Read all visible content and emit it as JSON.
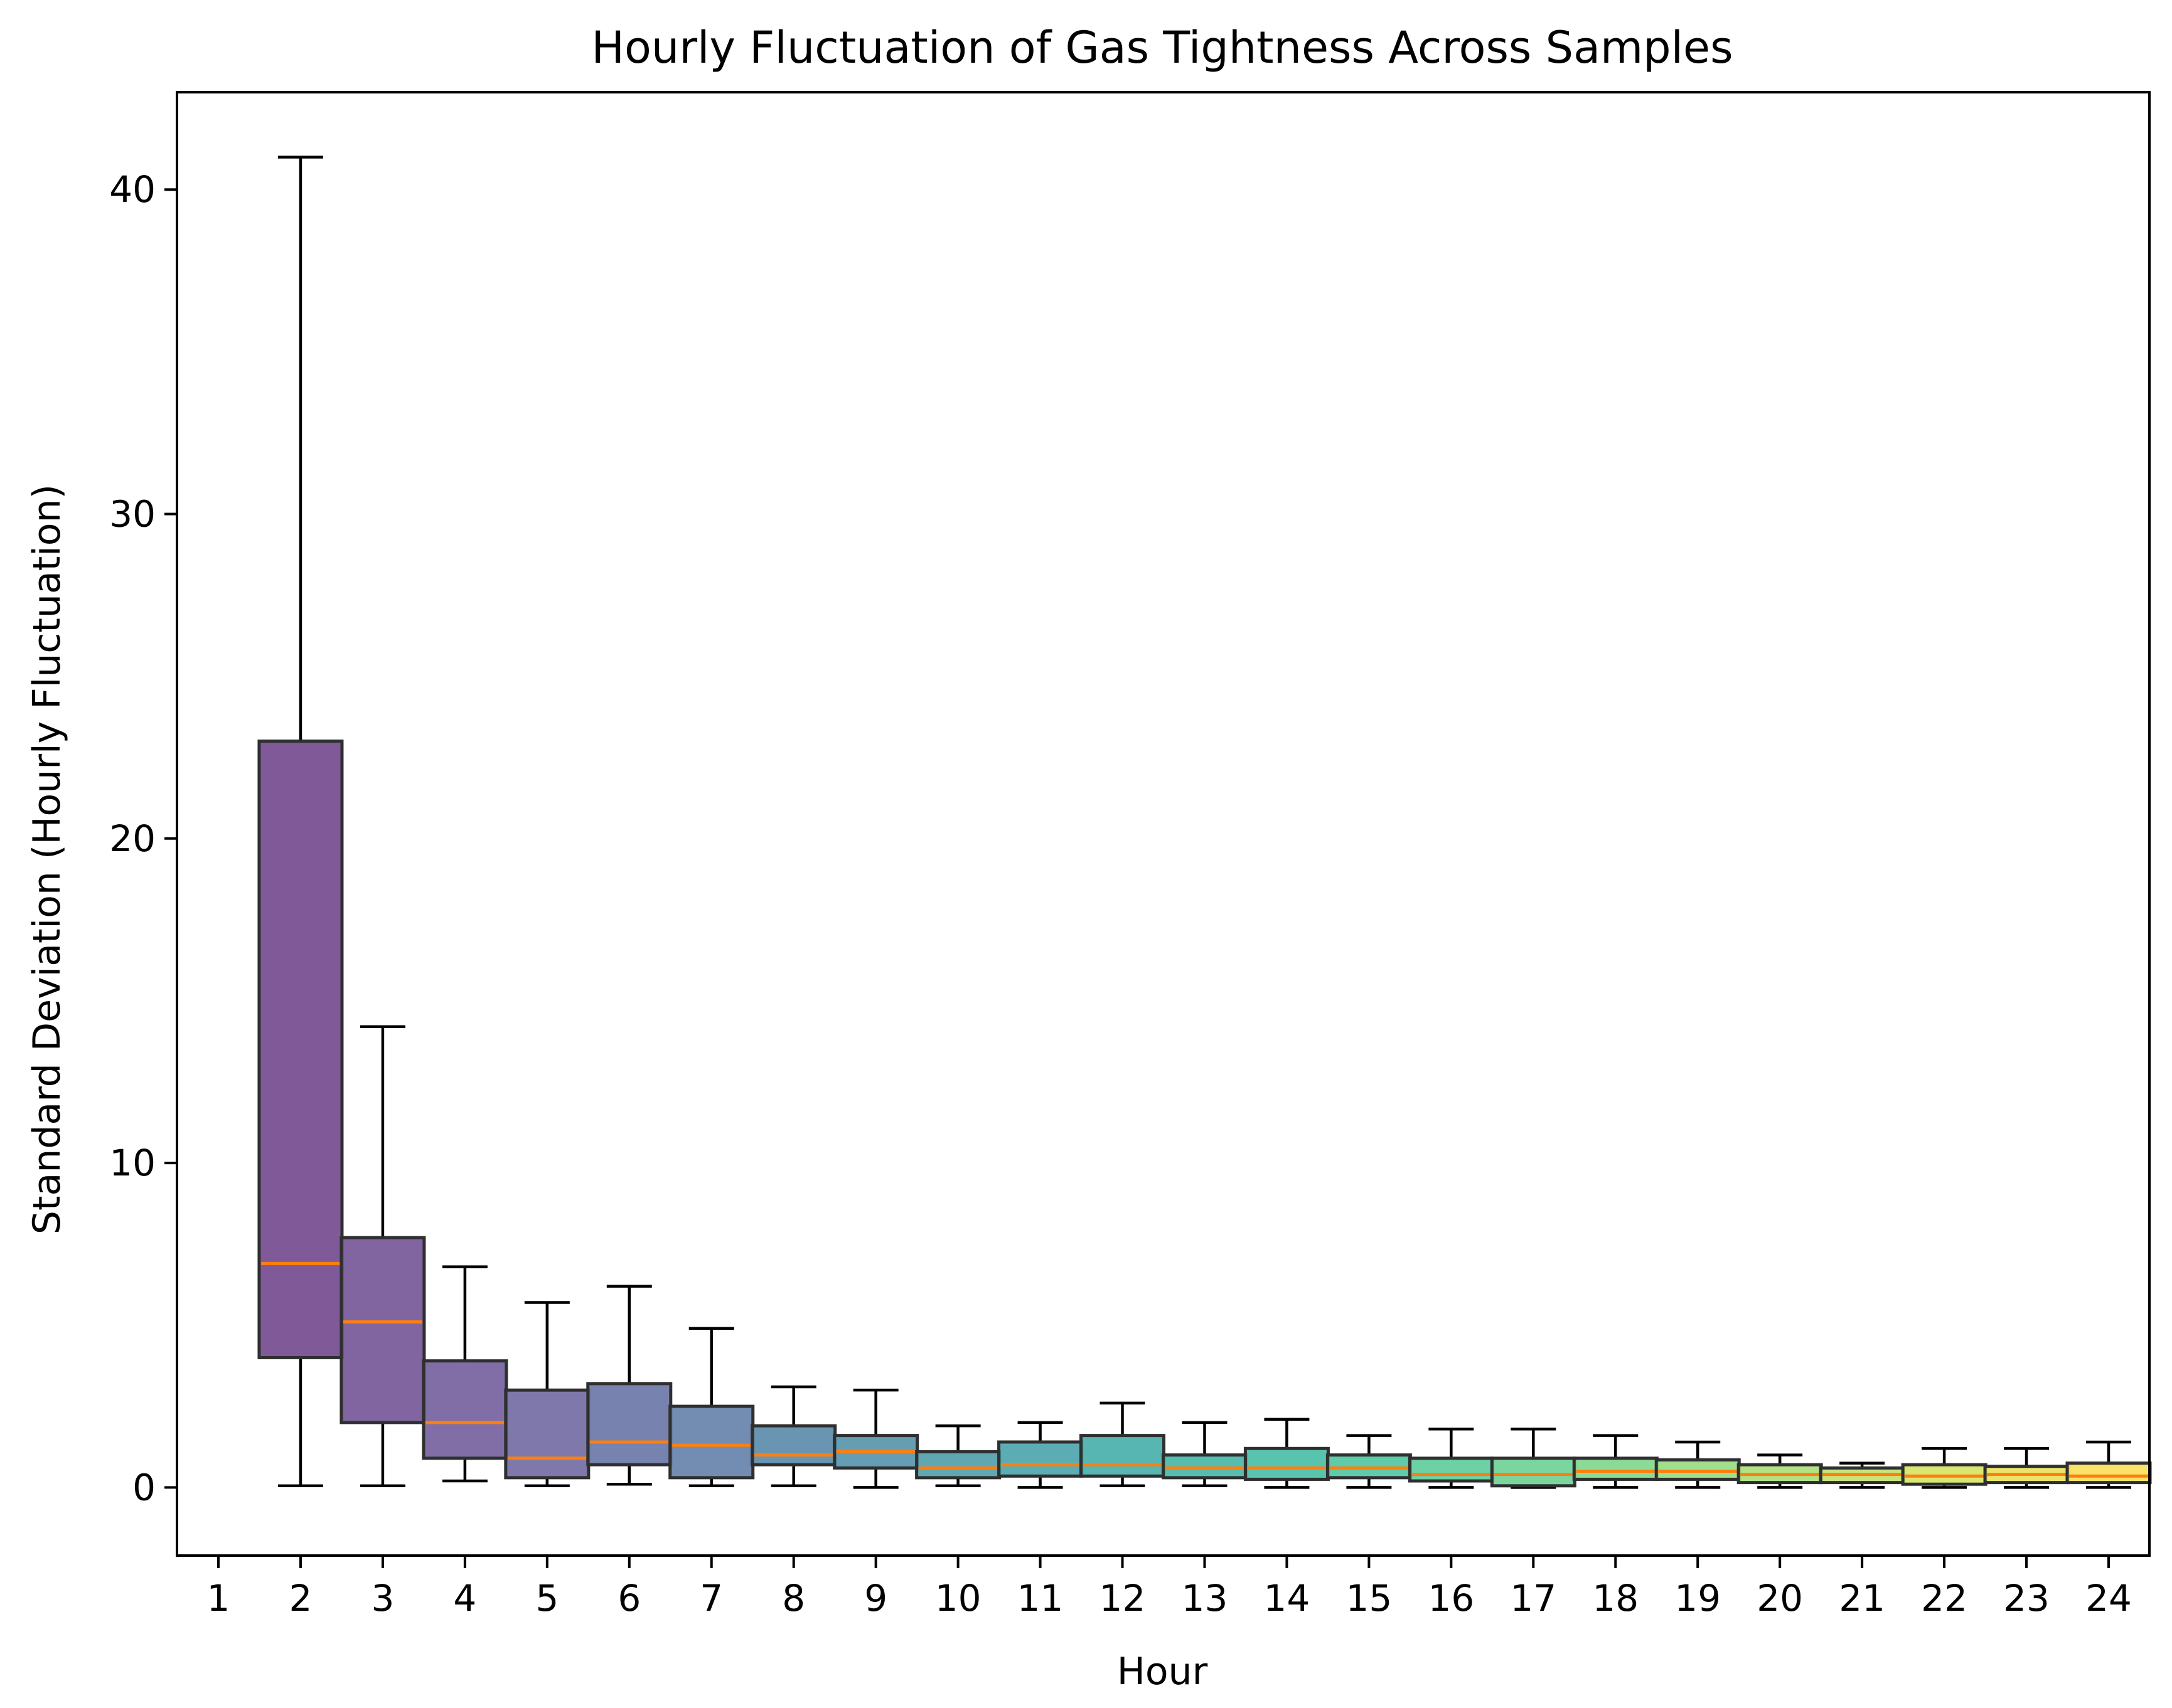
{
  "chart_data": {
    "type": "box",
    "title": "Hourly Fluctuation of Gas Tightness Across Samples",
    "xlabel": "Hour",
    "ylabel": "Standard Deviation (Hourly Fluctuation)",
    "ylim": [
      -2.1,
      43.0
    ],
    "yticks": [
      0,
      10,
      20,
      30,
      40
    ],
    "categories": [
      "1",
      "2",
      "3",
      "4",
      "5",
      "6",
      "7",
      "8",
      "9",
      "10",
      "11",
      "12",
      "13",
      "14",
      "15",
      "16",
      "17",
      "18",
      "19",
      "20",
      "21",
      "22",
      "23",
      "24"
    ],
    "median_color": "#ff7f0e",
    "boxes": [
      {
        "hour": "1",
        "min": null,
        "q1": null,
        "median": null,
        "q3": null,
        "max": null,
        "color": null
      },
      {
        "hour": "2",
        "min": 0.05,
        "q1": 4.0,
        "median": 6.9,
        "q3": 23.0,
        "max": 41.0,
        "color": "#6a3d86"
      },
      {
        "hour": "3",
        "min": 0.05,
        "q1": 2.0,
        "median": 5.1,
        "q3": 7.7,
        "max": 14.2,
        "color": "#6a4a90"
      },
      {
        "hour": "4",
        "min": 0.2,
        "q1": 0.9,
        "median": 2.0,
        "q3": 3.9,
        "max": 6.8,
        "color": "#6b5596"
      },
      {
        "hour": "5",
        "min": 0.05,
        "q1": 0.3,
        "median": 0.9,
        "q3": 3.0,
        "max": 5.7,
        "color": "#67609c"
      },
      {
        "hour": "6",
        "min": 0.1,
        "q1": 0.7,
        "median": 1.4,
        "q3": 3.2,
        "max": 6.2,
        "color": "#5f6ca0"
      },
      {
        "hour": "7",
        "min": 0.05,
        "q1": 0.3,
        "median": 1.3,
        "q3": 2.5,
        "max": 4.9,
        "color": "#5a78a3"
      },
      {
        "hour": "8",
        "min": 0.05,
        "q1": 0.7,
        "median": 1.0,
        "q3": 1.9,
        "max": 3.1,
        "color": "#4f82a4"
      },
      {
        "hour": "9",
        "min": 0.0,
        "q1": 0.6,
        "median": 1.1,
        "q3": 1.6,
        "max": 3.0,
        "color": "#4a8ca6"
      },
      {
        "hour": "10",
        "min": 0.05,
        "q1": 0.3,
        "median": 0.6,
        "q3": 1.1,
        "max": 1.9,
        "color": "#4596a6"
      },
      {
        "hour": "11",
        "min": 0.0,
        "q1": 0.35,
        "median": 0.7,
        "q3": 1.4,
        "max": 2.0,
        "color": "#3f9fa6"
      },
      {
        "hour": "12",
        "min": 0.05,
        "q1": 0.35,
        "median": 0.7,
        "q3": 1.6,
        "max": 2.6,
        "color": "#3aa8a5"
      },
      {
        "hour": "13",
        "min": 0.05,
        "q1": 0.3,
        "median": 0.6,
        "q3": 1.0,
        "max": 2.0,
        "color": "#39b1a3"
      },
      {
        "hour": "14",
        "min": 0.0,
        "q1": 0.25,
        "median": 0.6,
        "q3": 1.2,
        "max": 2.1,
        "color": "#3cbaa0"
      },
      {
        "hour": "15",
        "min": 0.0,
        "q1": 0.3,
        "median": 0.6,
        "q3": 1.0,
        "max": 1.6,
        "color": "#44c29b"
      },
      {
        "hour": "16",
        "min": 0.0,
        "q1": 0.2,
        "median": 0.4,
        "q3": 0.9,
        "max": 1.8,
        "color": "#52c995"
      },
      {
        "hour": "17",
        "min": 0.0,
        "q1": 0.05,
        "median": 0.4,
        "q3": 0.9,
        "max": 1.8,
        "color": "#63cf8d"
      },
      {
        "hour": "18",
        "min": 0.0,
        "q1": 0.25,
        "median": 0.5,
        "q3": 0.9,
        "max": 1.6,
        "color": "#77d585"
      },
      {
        "hour": "19",
        "min": 0.0,
        "q1": 0.25,
        "median": 0.5,
        "q3": 0.85,
        "max": 1.4,
        "color": "#8ed97a"
      },
      {
        "hour": "20",
        "min": 0.0,
        "q1": 0.15,
        "median": 0.4,
        "q3": 0.7,
        "max": 1.0,
        "color": "#a5dd70"
      },
      {
        "hour": "21",
        "min": 0.0,
        "q1": 0.15,
        "median": 0.4,
        "q3": 0.6,
        "max": 0.75,
        "color": "#bde063"
      },
      {
        "hour": "22",
        "min": 0.0,
        "q1": 0.1,
        "median": 0.35,
        "q3": 0.7,
        "max": 1.2,
        "color": "#d2e259"
      },
      {
        "hour": "23",
        "min": 0.0,
        "q1": 0.15,
        "median": 0.4,
        "q3": 0.65,
        "max": 1.2,
        "color": "#e6e050"
      },
      {
        "hour": "24",
        "min": 0.0,
        "q1": 0.15,
        "median": 0.35,
        "q3": 0.75,
        "max": 1.4,
        "color": "#f7dd4c"
      }
    ]
  }
}
